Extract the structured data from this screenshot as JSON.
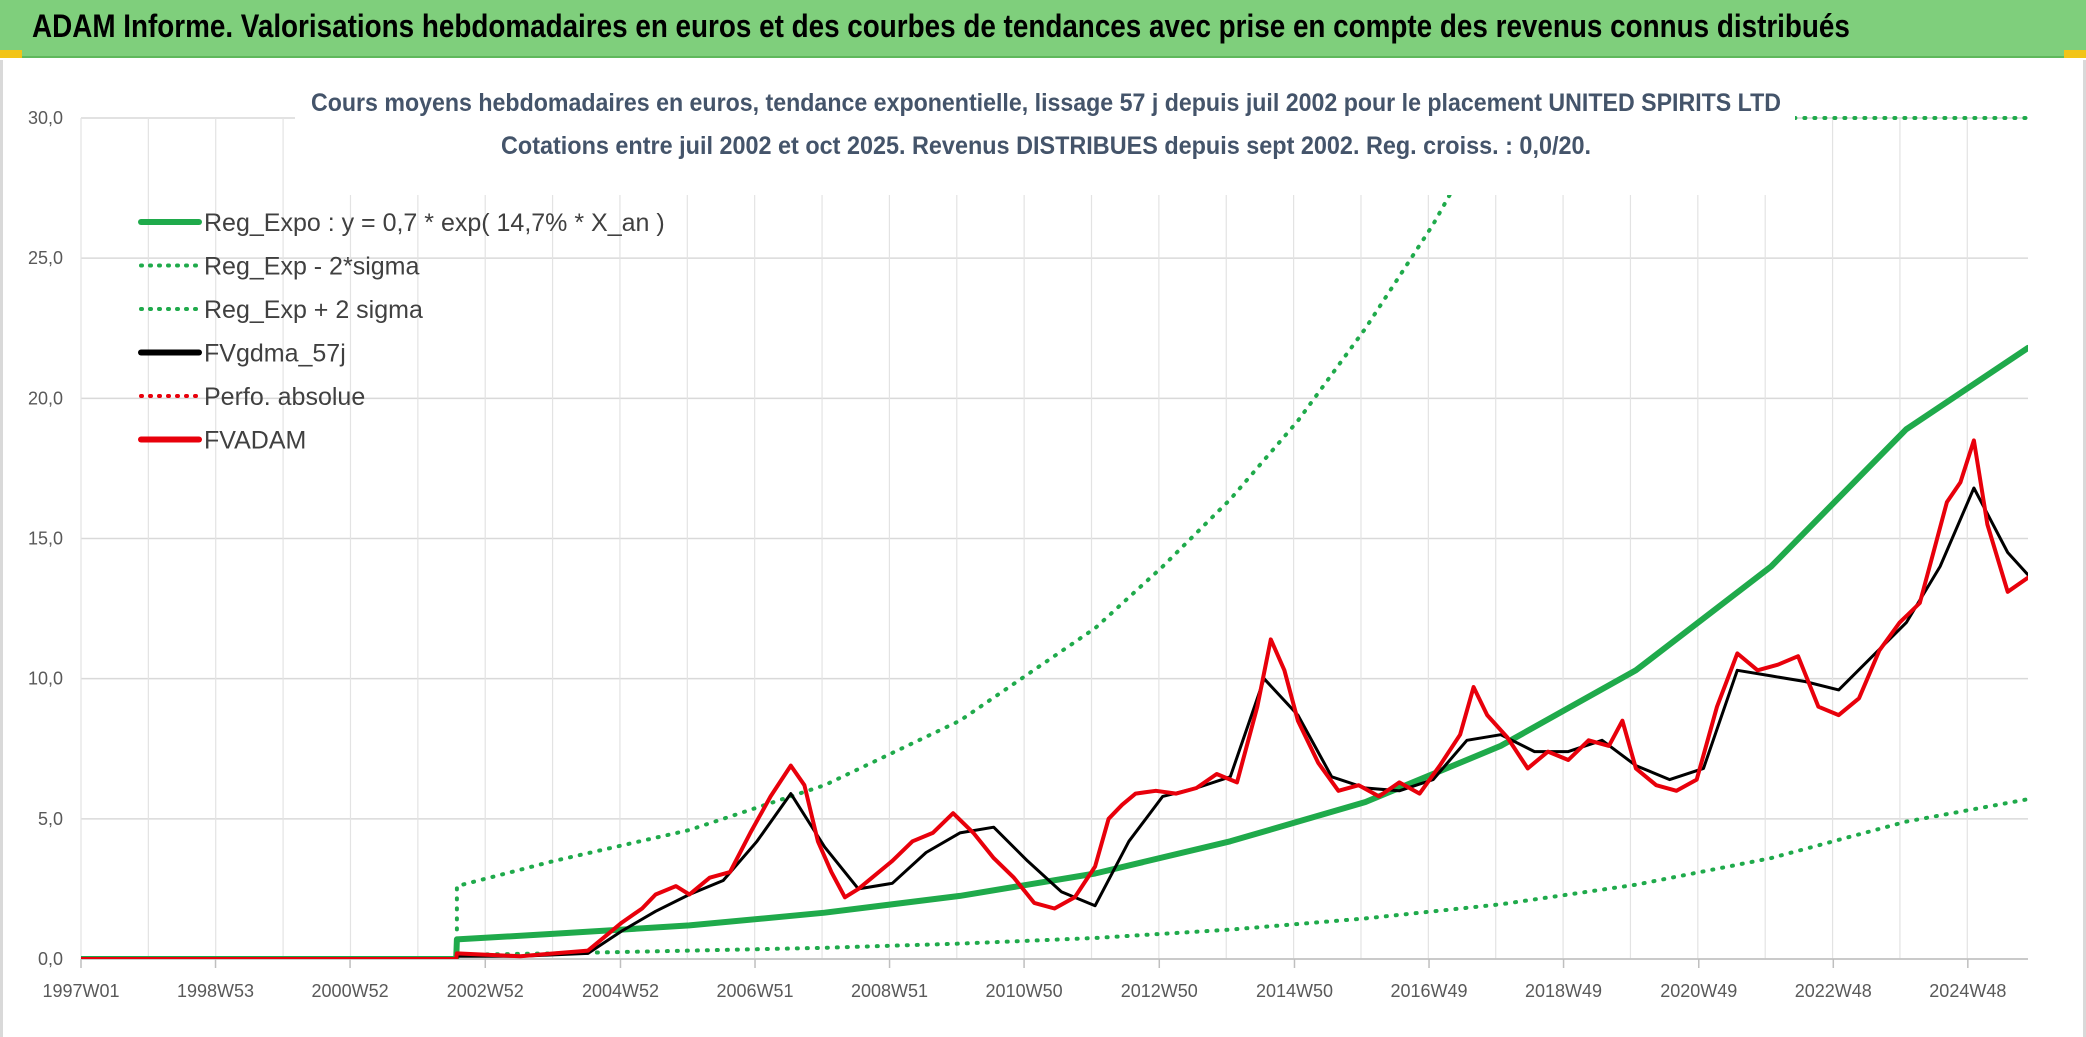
{
  "banner": {
    "title": "ADAM Informe. Valorisations hebdomadaires en euros et des courbes de tendances avec prise en compte des revenus connus distribués"
  },
  "chart_data": {
    "type": "line",
    "title": "Cours moyens hebdomadaires en euros, tendance exponentielle, lissage 57 j depuis juil 2002 pour le placement UNITED SPIRITS LTD",
    "subtitle": "Cotations entre juil 2002 et oct 2025. Revenus DISTRIBUES depuis sept 2002. Reg. croiss. : 0,0/20.",
    "xlabel": "",
    "ylabel": "",
    "ylim": [
      0,
      30
    ],
    "yticks": [
      "0,0",
      "5,0",
      "10,0",
      "15,0",
      "20,0",
      "25,0",
      "30,0"
    ],
    "xlim": [
      1997.0,
      2025.8
    ],
    "xticks": [
      {
        "label": "1997W01",
        "x": 1997.0
      },
      {
        "label": "1998W53",
        "x": 1998.99
      },
      {
        "label": "2000W52",
        "x": 2000.98
      },
      {
        "label": "2002W52",
        "x": 2002.98
      },
      {
        "label": "2004W52",
        "x": 2004.98
      },
      {
        "label": "2006W51",
        "x": 2006.97
      },
      {
        "label": "2008W51",
        "x": 2008.96
      },
      {
        "label": "2010W50",
        "x": 2010.95
      },
      {
        "label": "2012W50",
        "x": 2012.95
      },
      {
        "label": "2014W50",
        "x": 2014.95
      },
      {
        "label": "2016W49",
        "x": 2016.94
      },
      {
        "label": "2018W49",
        "x": 2018.93
      },
      {
        "label": "2020W49",
        "x": 2020.93
      },
      {
        "label": "2022W48",
        "x": 2022.92
      },
      {
        "label": "2024W48",
        "x": 2024.91
      }
    ],
    "grid": true,
    "legend_position": "top-left",
    "colors": {
      "green": "#1faa4b",
      "black": "#000000",
      "red": "#e8000b",
      "grid": "#d9d9d9",
      "title": "#44546a"
    },
    "series": [
      {
        "name": "Reg_Expo : y = 0,7 * exp( 14,7% *  X_an )",
        "color": "#1faa4b",
        "style": "solid",
        "width": 6,
        "x": [
          1997.0,
          2002.55,
          2002.56,
          2004,
          2006,
          2008,
          2010,
          2012,
          2014,
          2016,
          2018,
          2020,
          2022,
          2024,
          2025.8
        ],
        "y": [
          0,
          0,
          0.7,
          0.9,
          1.2,
          1.65,
          2.25,
          3.05,
          4.2,
          5.6,
          7.6,
          10.3,
          14.0,
          18.9,
          21.8
        ]
      },
      {
        "name": "Reg_Exp - 2*sigma",
        "color": "#1faa4b",
        "style": "dotted",
        "width": 4,
        "x": [
          2002.56,
          2004,
          2006,
          2008,
          2010,
          2012,
          2014,
          2016,
          2018,
          2020,
          2022,
          2024,
          2025.8
        ],
        "y": [
          0.15,
          0.2,
          0.3,
          0.4,
          0.55,
          0.75,
          1.05,
          1.45,
          1.95,
          2.65,
          3.6,
          4.9,
          5.7
        ]
      },
      {
        "name": "Reg_Exp + 2 sigma",
        "color": "#1faa4b",
        "style": "dotted",
        "width": 4,
        "x": [
          2002.56,
          2002.56,
          2004,
          2006,
          2008,
          2010,
          2012,
          2013,
          2014,
          2015,
          2016,
          2017,
          2018,
          2018.6,
          2020.8,
          2025.8
        ],
        "y": [
          0.7,
          2.6,
          3.5,
          4.6,
          6.2,
          8.5,
          11.8,
          14.0,
          16.4,
          19.2,
          22.5,
          26.2,
          30.5,
          30.5,
          30.0,
          30.0
        ]
      },
      {
        "name": "FVgdma_57j",
        "color": "#000000",
        "style": "solid",
        "width": 3,
        "x": [
          1997.0,
          2002.55,
          2002.56,
          2003.5,
          2004.5,
          2005.0,
          2005.5,
          2006.0,
          2006.5,
          2007.0,
          2007.5,
          2008.0,
          2008.5,
          2009.0,
          2009.5,
          2010.0,
          2010.5,
          2011.0,
          2011.5,
          2012.0,
          2012.5,
          2013.0,
          2013.5,
          2014.0,
          2014.5,
          2015.0,
          2015.5,
          2016.0,
          2016.5,
          2017.0,
          2017.5,
          2018.0,
          2018.5,
          2019.0,
          2019.5,
          2020.0,
          2020.5,
          2021.0,
          2021.5,
          2022.0,
          2022.5,
          2023.0,
          2023.5,
          2024.0,
          2024.5,
          2025.0,
          2025.5,
          2025.8
        ],
        "y": [
          0,
          0,
          0.1,
          0.1,
          0.2,
          1.0,
          1.7,
          2.3,
          2.8,
          4.2,
          5.9,
          4.0,
          2.5,
          2.7,
          3.8,
          4.5,
          4.7,
          3.5,
          2.4,
          1.9,
          4.2,
          5.8,
          6.1,
          6.5,
          10.0,
          8.7,
          6.5,
          6.1,
          6.0,
          6.4,
          7.8,
          8.0,
          7.4,
          7.4,
          7.8,
          6.9,
          6.4,
          6.8,
          10.3,
          10.1,
          9.9,
          9.6,
          10.8,
          12.0,
          14.0,
          16.8,
          14.5,
          13.7
        ]
      },
      {
        "name": "Perfo. absolue",
        "color": "#e8000b",
        "style": "dotted",
        "width": 3,
        "x": [],
        "y": []
      },
      {
        "name": "FVADAM",
        "color": "#e8000b",
        "style": "solid",
        "width": 4,
        "x": [
          1997.0,
          2002.55,
          2002.56,
          2003.0,
          2003.5,
          2004.0,
          2004.5,
          2004.8,
          2005.0,
          2005.3,
          2005.5,
          2005.8,
          2006.0,
          2006.3,
          2006.6,
          2006.9,
          2007.2,
          2007.5,
          2007.7,
          2007.9,
          2008.1,
          2008.3,
          2008.5,
          2008.7,
          2009.0,
          2009.3,
          2009.6,
          2009.9,
          2010.2,
          2010.5,
          2010.8,
          2011.1,
          2011.4,
          2011.7,
          2012.0,
          2012.2,
          2012.4,
          2012.6,
          2012.9,
          2013.2,
          2013.5,
          2013.8,
          2014.1,
          2014.4,
          2014.6,
          2014.8,
          2015.0,
          2015.3,
          2015.6,
          2015.9,
          2016.2,
          2016.5,
          2016.8,
          2017.1,
          2017.4,
          2017.6,
          2017.8,
          2018.1,
          2018.4,
          2018.7,
          2019.0,
          2019.3,
          2019.6,
          2019.8,
          2020.0,
          2020.3,
          2020.6,
          2020.9,
          2021.2,
          2021.5,
          2021.8,
          2022.1,
          2022.4,
          2022.7,
          2023.0,
          2023.3,
          2023.6,
          2023.9,
          2024.2,
          2024.4,
          2024.6,
          2024.8,
          2025.0,
          2025.2,
          2025.5,
          2025.8
        ],
        "y": [
          0,
          0,
          0.2,
          0.15,
          0.1,
          0.2,
          0.3,
          0.9,
          1.3,
          1.8,
          2.3,
          2.6,
          2.3,
          2.9,
          3.1,
          4.5,
          5.8,
          6.9,
          6.2,
          4.2,
          3.1,
          2.2,
          2.5,
          2.9,
          3.5,
          4.2,
          4.5,
          5.2,
          4.5,
          3.6,
          2.9,
          2.0,
          1.8,
          2.2,
          3.3,
          5.0,
          5.5,
          5.9,
          6.0,
          5.9,
          6.1,
          6.6,
          6.3,
          9.0,
          11.4,
          10.3,
          8.5,
          7.0,
          6.0,
          6.2,
          5.8,
          6.3,
          5.9,
          6.9,
          8.0,
          9.7,
          8.7,
          7.9,
          6.8,
          7.4,
          7.1,
          7.8,
          7.6,
          8.5,
          6.8,
          6.2,
          6.0,
          6.4,
          9.0,
          10.9,
          10.3,
          10.5,
          10.8,
          9.0,
          8.7,
          9.3,
          11.0,
          12.0,
          12.7,
          14.5,
          16.3,
          17.0,
          18.5,
          15.5,
          13.1,
          13.6
        ]
      }
    ]
  }
}
